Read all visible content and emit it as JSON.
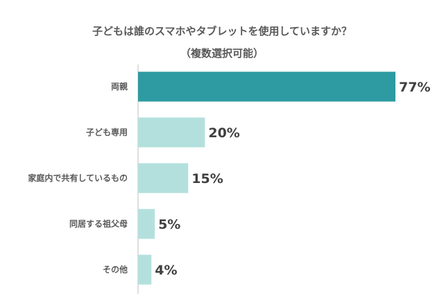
{
  "chart_data": {
    "type": "bar",
    "orientation": "horizontal",
    "title": "子どもは誰のスマホやタブレットを使用していますか？",
    "subtitle": "（複数選択可能）",
    "categories": [
      "両親",
      "子ども専用",
      "家庭内で共有しているもの",
      "同居する祖父母",
      "その他"
    ],
    "values": [
      77,
      20,
      15,
      5,
      4
    ],
    "value_labels": [
      "77%",
      "20%",
      "15%",
      "5%",
      "4%"
    ],
    "xlim": [
      0,
      77
    ],
    "grid": false,
    "legend": "none",
    "colors": {
      "highlight": "#2e9aa1",
      "default": "#b3e0dd",
      "axis": "#bfbfbf"
    }
  }
}
